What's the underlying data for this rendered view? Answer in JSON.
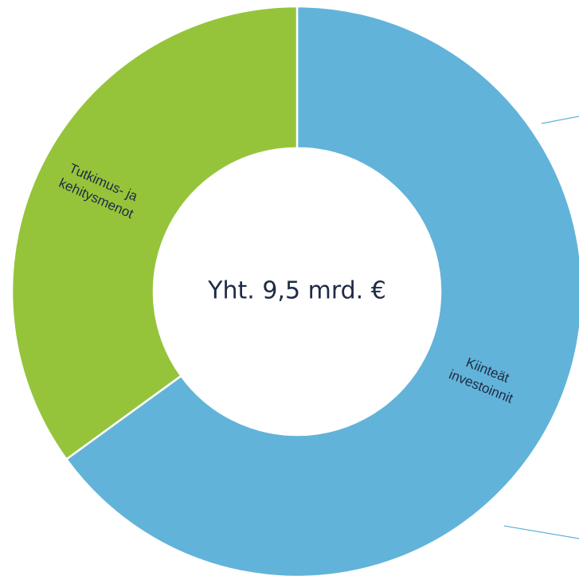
{
  "chart_data": {
    "type": "pie",
    "donut": true,
    "center_label": "Yht.  9,5 mrd. €",
    "slices": [
      {
        "label_lines": [
          "Kiinteät",
          "investoinnit"
        ],
        "value": 65,
        "color": "#62b3d9"
      },
      {
        "label_lines": [
          "Tutkimus- ja",
          "kehitysmenot"
        ],
        "value": 35,
        "color": "#95c43b"
      }
    ],
    "separator_color": "#ffffff",
    "legend": "none"
  }
}
